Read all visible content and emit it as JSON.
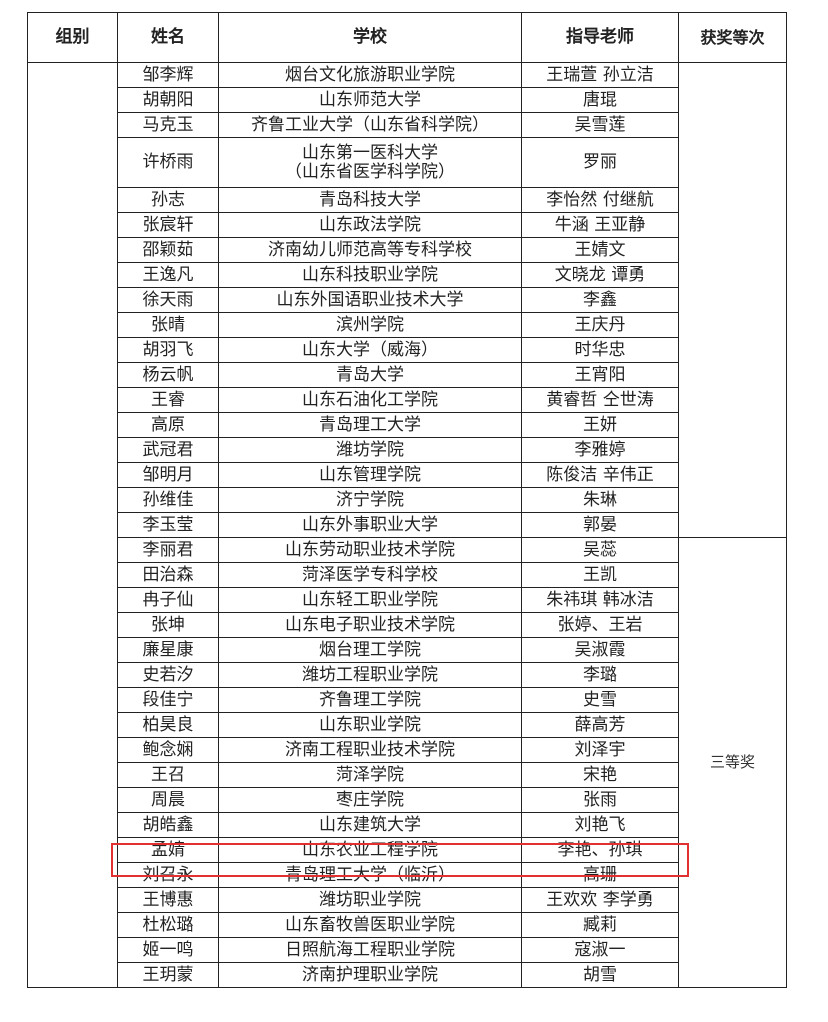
{
  "headers": {
    "group": "组别",
    "name": "姓名",
    "school": "学校",
    "teacher": "指导老师",
    "award": "获奖等次"
  },
  "groups": [
    {
      "award": "",
      "rows": [
        {
          "name": "邹李辉",
          "school": "烟台文化旅游职业学院",
          "teacher": "王瑞萱  孙立洁"
        },
        {
          "name": "胡朝阳",
          "school": "山东师范大学",
          "teacher": "唐琨"
        },
        {
          "name": "马克玉",
          "school": "齐鲁工业大学（山东省科学院）",
          "teacher": "吴雪莲"
        },
        {
          "name": "许桥雨",
          "school": "山东第一医科大学\n（山东省医学科学院）",
          "teacher": "罗丽"
        },
        {
          "name": "孙志",
          "school": "青岛科技大学",
          "teacher": "李怡然  付继航"
        },
        {
          "name": "张宸轩",
          "school": "山东政法学院",
          "teacher": "牛涵  王亚静"
        },
        {
          "name": "邵颖茹",
          "school": "济南幼儿师范高等专科学校",
          "teacher": "王婧文"
        },
        {
          "name": "王逸凡",
          "school": "山东科技职业学院",
          "teacher": "文晓龙  谭勇"
        },
        {
          "name": "徐天雨",
          "school": "山东外国语职业技术大学",
          "teacher": "李鑫"
        },
        {
          "name": "张晴",
          "school": "滨州学院",
          "teacher": "王庆丹"
        },
        {
          "name": "胡羽飞",
          "school": "山东大学（威海）",
          "teacher": "时华忠"
        },
        {
          "name": "杨云帆",
          "school": "青岛大学",
          "teacher": "王宵阳"
        },
        {
          "name": "王睿",
          "school": "山东石油化工学院",
          "teacher": "黄睿哲  仝世涛"
        },
        {
          "name": "高原",
          "school": "青岛理工大学",
          "teacher": "王妍"
        },
        {
          "name": "武冠君",
          "school": "潍坊学院",
          "teacher": "李雅婷"
        },
        {
          "name": "邹明月",
          "school": "山东管理学院",
          "teacher": "陈俊洁  辛伟正"
        },
        {
          "name": "孙维佳",
          "school": "济宁学院",
          "teacher": "朱琳"
        },
        {
          "name": "李玉莹",
          "school": "山东外事职业大学",
          "teacher": "郭晏"
        }
      ]
    },
    {
      "award": "三等奖",
      "rows": [
        {
          "name": "李丽君",
          "school": "山东劳动职业技术学院",
          "teacher": "吴蕊"
        },
        {
          "name": "田治森",
          "school": "菏泽医学专科学校",
          "teacher": "王凯"
        },
        {
          "name": "冉子仙",
          "school": "山东轻工职业学院",
          "teacher": "朱祎琪  韩冰洁"
        },
        {
          "name": "张坤",
          "school": "山东电子职业技术学院",
          "teacher": "张婷、王岩"
        },
        {
          "name": "廉星康",
          "school": "烟台理工学院",
          "teacher": "吴淑霞"
        },
        {
          "name": "史若汐",
          "school": "潍坊工程职业学院",
          "teacher": "李璐"
        },
        {
          "name": "段佳宁",
          "school": "齐鲁理工学院",
          "teacher": "史雪"
        },
        {
          "name": "柏昊良",
          "school": "山东职业学院",
          "teacher": "薛高芳"
        },
        {
          "name": "鲍念娴",
          "school": "济南工程职业技术学院",
          "teacher": "刘泽宇"
        },
        {
          "name": "王召",
          "school": "菏泽学院",
          "teacher": "宋艳"
        },
        {
          "name": "周晨",
          "school": "枣庄学院",
          "teacher": "张雨"
        },
        {
          "name": "胡皓鑫",
          "school": "山东建筑大学",
          "teacher": "刘艳飞"
        },
        {
          "name": "孟婧",
          "school": "山东农业工程学院",
          "teacher": "李艳、孙琪"
        },
        {
          "name": "刘召永",
          "school": "青岛理工大学（临沂）",
          "teacher": "高珊"
        },
        {
          "name": "王博惠",
          "school": "潍坊职业学院",
          "teacher": "王欢欢  李学勇"
        },
        {
          "name": "杜松璐",
          "school": "山东畜牧兽医职业学院",
          "teacher": "臧莉"
        },
        {
          "name": "姬一鸣",
          "school": "日照航海工程职业学院",
          "teacher": "寇淑一"
        },
        {
          "name": "王玥蒙",
          "school": "济南护理职业学院",
          "teacher": "胡雪"
        }
      ]
    }
  ],
  "highlight_color": "#e03030"
}
